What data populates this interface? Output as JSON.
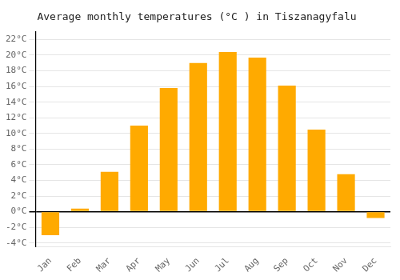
{
  "chart_data": {
    "type": "bar",
    "title": "Average monthly temperatures (°C ) in Tiszanagyfalu",
    "categories": [
      "Jan",
      "Feb",
      "Mar",
      "Apr",
      "May",
      "Jun",
      "Jul",
      "Aug",
      "Sep",
      "Oct",
      "Nov",
      "Dec"
    ],
    "values": [
      -3.0,
      0.4,
      5.1,
      11.0,
      15.8,
      19.0,
      20.4,
      19.7,
      16.1,
      10.5,
      4.8,
      -0.8
    ],
    "color": "#FFAA00",
    "ylim": [
      -4.5,
      23
    ],
    "yticks": [
      {
        "value": -4,
        "label": "-4°C"
      },
      {
        "value": -2,
        "label": "-2°C"
      },
      {
        "value": 0,
        "label": "0°C"
      },
      {
        "value": 2,
        "label": "2°C"
      },
      {
        "value": 4,
        "label": "4°C"
      },
      {
        "value": 6,
        "label": "6°C"
      },
      {
        "value": 8,
        "label": "8°C"
      },
      {
        "value": 10,
        "label": "10°C"
      },
      {
        "value": 12,
        "label": "12°C"
      },
      {
        "value": 14,
        "label": "14°C"
      },
      {
        "value": 16,
        "label": "16°C"
      },
      {
        "value": 18,
        "label": "18°C"
      },
      {
        "value": 20,
        "label": "20°C"
      },
      {
        "value": 22,
        "label": "22°C"
      }
    ],
    "grid": true
  }
}
